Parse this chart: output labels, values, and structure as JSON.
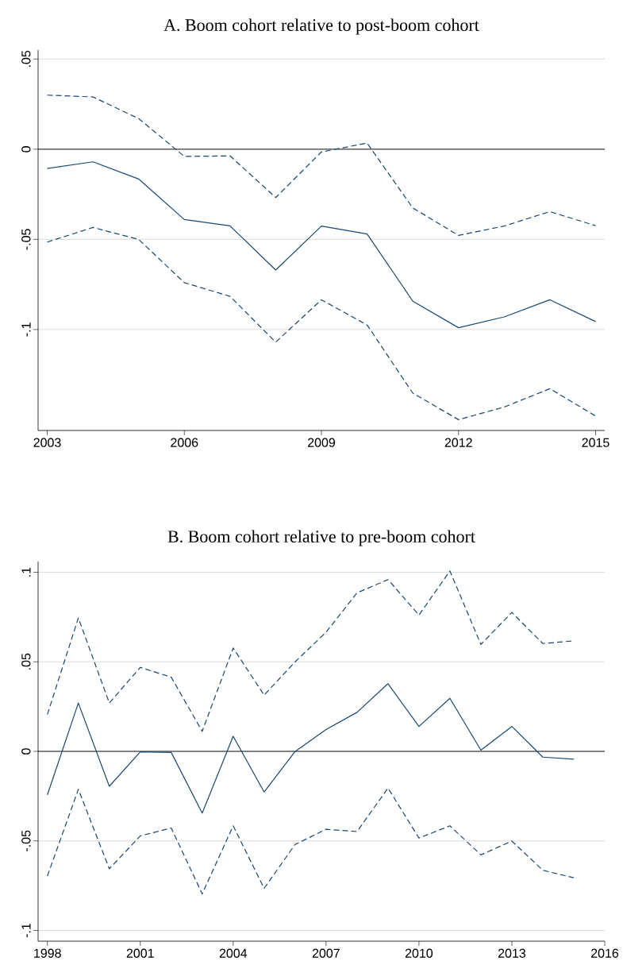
{
  "chart_data": [
    {
      "type": "line",
      "title": "A. Boom cohort relative to post-boom cohort",
      "x": [
        2003,
        2004,
        2005,
        2006,
        2007,
        2008,
        2009,
        2010,
        2011,
        2012,
        2013,
        2014,
        2015
      ],
      "xlim": [
        2002.8,
        2015.2
      ],
      "xticks": [
        2003,
        2006,
        2009,
        2012,
        2015
      ],
      "ylim": [
        -0.156,
        0.055
      ],
      "yticks": [
        {
          "value": -0.1,
          "label": "-.1"
        },
        {
          "value": -0.05,
          "label": "-.05"
        },
        0,
        {
          "value": 0.05,
          "label": ".05"
        }
      ],
      "grid": "y",
      "ref_lines": [
        {
          "axis": "y",
          "value": 0,
          "color": "#000000"
        }
      ],
      "series": [
        {
          "color": "#1a476f",
          "line_style": "dashed",
          "values": [
            0.03,
            0.029,
            0.017,
            -0.004,
            -0.0037,
            -0.0268,
            -0.0015,
            0.0034,
            -0.0326,
            -0.0478,
            -0.0426,
            -0.0346,
            -0.0424
          ]
        },
        {
          "color": "#1a476f",
          "line_style": "solid",
          "values": [
            -0.0107,
            -0.007,
            -0.0165,
            -0.039,
            -0.0425,
            -0.067,
            -0.0426,
            -0.047,
            -0.0843,
            -0.099,
            -0.093,
            -0.0835,
            -0.0956
          ]
        },
        {
          "color": "#1a476f",
          "line_style": "dashed",
          "values": [
            -0.0515,
            -0.0434,
            -0.05,
            -0.074,
            -0.0816,
            -0.107,
            -0.0835,
            -0.0975,
            -0.1353,
            -0.15,
            -0.143,
            -0.1328,
            -0.148
          ]
        }
      ]
    },
    {
      "type": "line",
      "title": "B. Boom cohort relative to pre-boom cohort",
      "x": [
        1998,
        1999,
        2000,
        2001,
        2002,
        2003,
        2004,
        2005,
        2006,
        2007,
        2008,
        2009,
        2010,
        2011,
        2012,
        2013,
        2014,
        2015
      ],
      "xlim": [
        1997.7,
        2016
      ],
      "xticks": [
        1998,
        2001,
        2004,
        2007,
        2010,
        2013,
        2016
      ],
      "ylim": [
        -0.106,
        0.106
      ],
      "yticks": [
        {
          "value": -0.1,
          "label": "-.1"
        },
        {
          "value": -0.05,
          "label": "-.05"
        },
        0,
        {
          "value": 0.05,
          "label": ".05"
        },
        {
          "value": 0.1,
          "label": ".1"
        }
      ],
      "grid": "y",
      "ref_lines": [
        {
          "axis": "y",
          "value": 0,
          "color": "#000000"
        }
      ],
      "series": [
        {
          "color": "#1a476f",
          "line_style": "dashed",
          "values": [
            0.0206,
            0.0745,
            0.027,
            0.0469,
            0.0414,
            0.0112,
            0.0577,
            0.0314,
            0.05,
            0.0665,
            0.0885,
            0.0959,
            0.0761,
            0.1007,
            0.0597,
            0.0776,
            0.0602,
            0.0617
          ]
        },
        {
          "color": "#1a476f",
          "line_style": "solid",
          "values": [
            -0.0243,
            0.027,
            -0.0195,
            -0.0003,
            -0.0006,
            -0.0345,
            0.0084,
            -0.0227,
            -0.0001,
            0.0122,
            0.0218,
            0.0378,
            0.0139,
            0.0296,
            0.0007,
            0.0139,
            -0.0032,
            -0.0044
          ]
        },
        {
          "color": "#1a476f",
          "line_style": "dashed",
          "values": [
            -0.0696,
            -0.0212,
            -0.0656,
            -0.0472,
            -0.0428,
            -0.0796,
            -0.0416,
            -0.0765,
            -0.052,
            -0.0435,
            -0.0448,
            -0.0205,
            -0.0484,
            -0.0416,
            -0.0578,
            -0.0501,
            -0.0664,
            -0.0706
          ]
        }
      ]
    }
  ]
}
